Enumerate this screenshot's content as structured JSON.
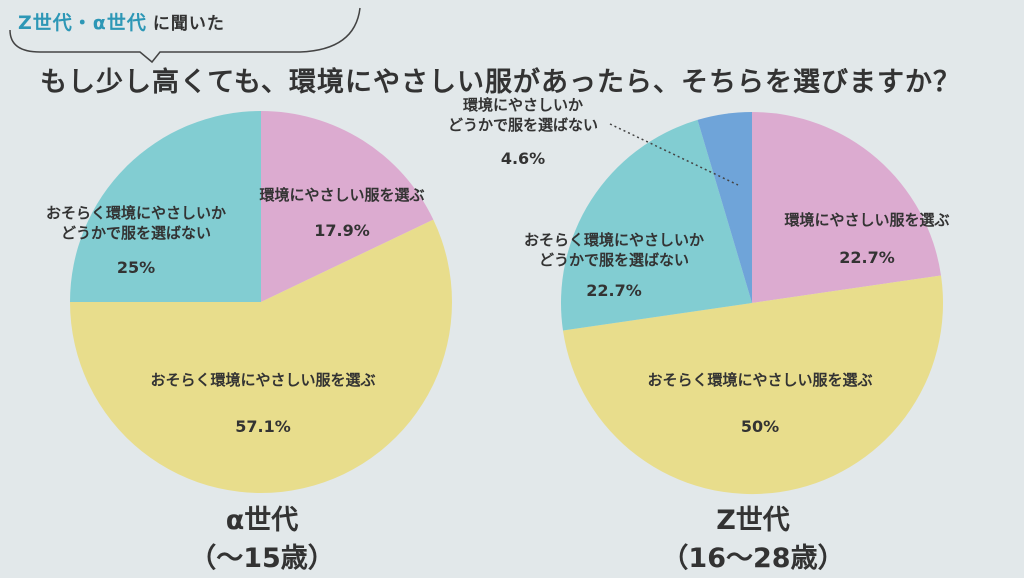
{
  "header": {
    "tag_accent": "Z世代・α世代",
    "tag_rest": "に聞いた",
    "question": "もし少し高くても、環境にやさしい服があったら、そちらを選びますか？"
  },
  "colors": {
    "pink": "#dcabd0",
    "yellow": "#e8dd8c",
    "teal": "#82cdd2",
    "blue": "#6fa4d9"
  },
  "chart_data": [
    {
      "type": "pie",
      "title": "α世代",
      "subtitle": "（〜15歳）",
      "slices": [
        {
          "label": "環境にやさしい服を選ぶ",
          "value": 17.9,
          "value_label": "17.9%",
          "color": "#dcabd0"
        },
        {
          "label": "おそらく環境にやさしい服を選ぶ",
          "value": 57.1,
          "value_label": "57.1%",
          "color": "#e8dd8c"
        },
        {
          "label": "おそらく環境にやさしいかどうかで服を選ばない",
          "value": 25,
          "value_label": "25%",
          "color": "#82cdd2"
        }
      ]
    },
    {
      "type": "pie",
      "title": "Z世代",
      "subtitle": "（16〜28歳）",
      "slices": [
        {
          "label": "環境にやさしい服を選ぶ",
          "value": 22.7,
          "value_label": "22.7%",
          "color": "#dcabd0"
        },
        {
          "label": "おそらく環境にやさしい服を選ぶ",
          "value": 50,
          "value_label": "50%",
          "color": "#e8dd8c"
        },
        {
          "label": "おそらく環境にやさしいかどうかで服を選ばない",
          "value": 22.7,
          "value_label": "22.7%",
          "color": "#82cdd2"
        },
        {
          "label": "環境にやさしいかどうかで服を選ばない",
          "value": 4.6,
          "value_label": "4.6%",
          "color": "#6fa4d9"
        }
      ]
    }
  ]
}
